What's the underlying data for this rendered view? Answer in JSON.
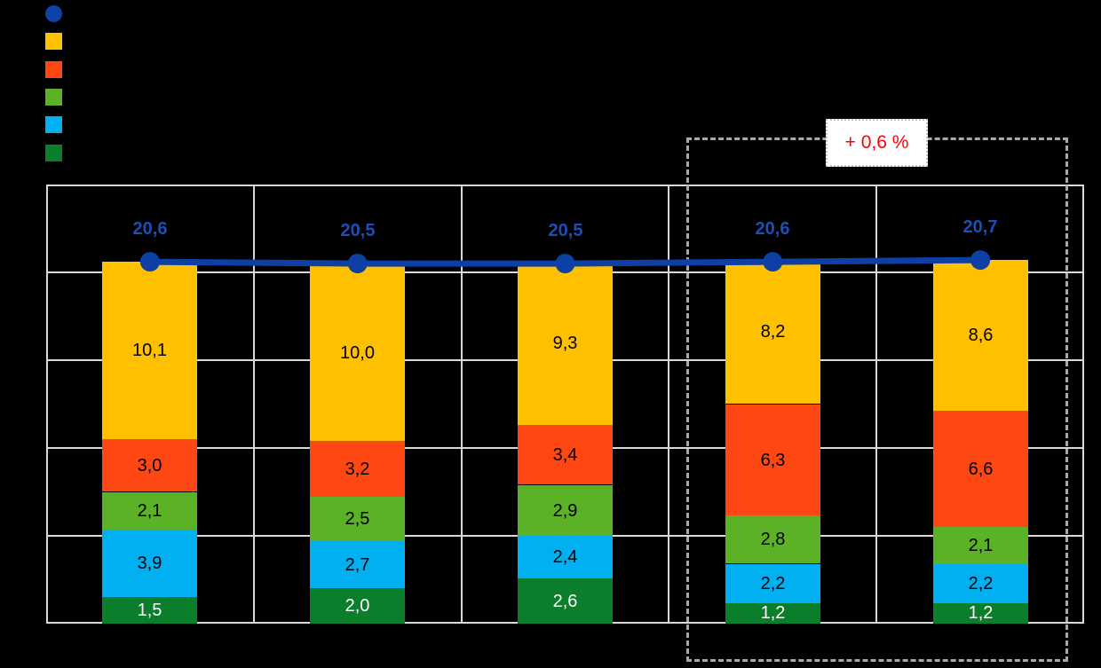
{
  "page": {
    "background": "#000000"
  },
  "legend": {
    "labels_visible": false,
    "items": [
      {
        "name": "total-line",
        "marker": "circle",
        "color": "#0D43A6"
      },
      {
        "name": "series-yellow",
        "marker": "square",
        "color": "#FFC000"
      },
      {
        "name": "series-orange",
        "marker": "square",
        "color": "#FF4713"
      },
      {
        "name": "series-green",
        "marker": "square",
        "color": "#5CB227"
      },
      {
        "name": "series-lightblue",
        "marker": "square",
        "color": "#00B0F0"
      },
      {
        "name": "series-darkgreen",
        "marker": "square",
        "color": "#0A7E2B"
      }
    ]
  },
  "chart_data": {
    "type": "stacked-bar+line",
    "n_categories": 5,
    "category_labels_visible": false,
    "y_axis_labels_visible": false,
    "ylim": [
      0,
      25
    ],
    "grid_interval": 5,
    "grid_on": true,
    "legend_position": "top-left",
    "bar_series_bottom_to_top": [
      {
        "name": "darkgreen",
        "color": "#0A7E2B",
        "label_color": "#FFFFFF",
        "values": [
          1.5,
          2.0,
          2.6,
          1.2,
          1.2
        ],
        "labels": [
          "1,5",
          "2,0",
          "2,6",
          "1,2",
          "1,2"
        ]
      },
      {
        "name": "lightblue",
        "color": "#00B0F0",
        "label_color": "#000000",
        "values": [
          3.9,
          2.7,
          2.4,
          2.2,
          2.2
        ],
        "labels": [
          "3,9",
          "2,7",
          "2,4",
          "2,2",
          "2,2"
        ]
      },
      {
        "name": "green",
        "color": "#5CB227",
        "label_color": "#000000",
        "values": [
          2.1,
          2.5,
          2.9,
          2.8,
          2.1
        ],
        "labels": [
          "2,1",
          "2,5",
          "2,9",
          "2,8",
          "2,1"
        ]
      },
      {
        "name": "orange",
        "color": "#FF4713",
        "label_color": "#000000",
        "values": [
          3.0,
          3.2,
          3.4,
          6.3,
          6.6
        ],
        "labels": [
          "3,0",
          "3,2",
          "3,4",
          "6,3",
          "6,6"
        ]
      },
      {
        "name": "yellow",
        "color": "#FFC000",
        "label_color": "#000000",
        "values": [
          10.1,
          10.0,
          9.3,
          8.2,
          8.6
        ],
        "labels": [
          "10,1",
          "10,0",
          "9,3",
          "8,2",
          "8,6"
        ]
      }
    ],
    "line_series": {
      "name": "total",
      "color": "#0E3FA5",
      "label_color": "#1C4FB5",
      "values": [
        20.6,
        20.5,
        20.5,
        20.6,
        20.7
      ],
      "labels": [
        "20,6",
        "20,5",
        "20,5",
        "20,6",
        "20,7"
      ]
    },
    "annotation": {
      "text": "+ 0,6 %",
      "color": "#FF0000",
      "applies_to": "last two categories"
    },
    "highlight_box": {
      "first_category": 4,
      "last_category": 5,
      "style": "dashed",
      "color": "#A8A8A8"
    }
  },
  "colors": {
    "gridline": "#D9D9D9",
    "plot_border": "#D9D9D9",
    "annotation_box_bg": "#FFFFFF",
    "annotation_box_border": "#BFBFBF"
  }
}
